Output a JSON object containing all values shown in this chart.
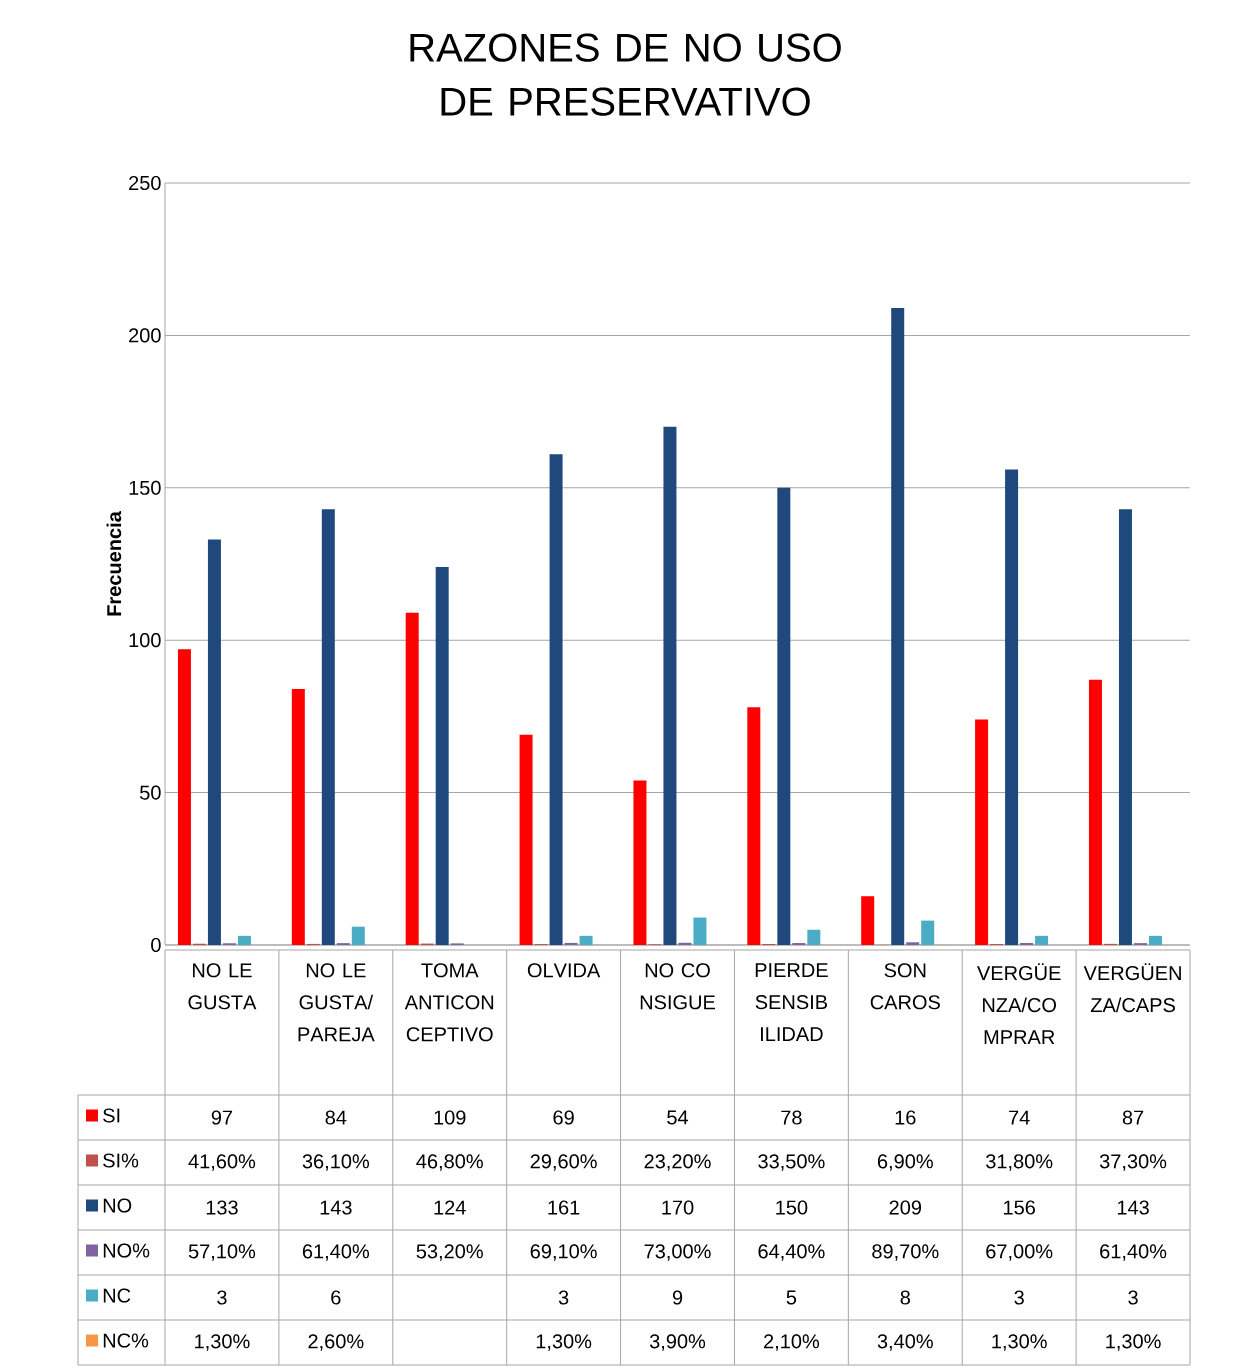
{
  "chart_data": {
    "type": "bar",
    "title": "RAZONES DE NO USO DE PRESERVATIVO",
    "ylabel": "Frecuencia",
    "categories": [
      "NO LE GUSTA",
      "NO LE GUSTA/PAREJA",
      "TOMA ANTICONCEPTIVO",
      "OLVIDA",
      "NO CONSIGUE",
      "PIERDE SENSIBILIDAD",
      "SON CAROS",
      "VERGÜENZA/COMPRAR",
      "VERGÜENZA/CAPS"
    ],
    "series": [
      {
        "name": "SI",
        "color": "#ff0000",
        "values": [
          97,
          84,
          109,
          69,
          54,
          78,
          16,
          74,
          87
        ],
        "value_labels": [
          "97",
          "84",
          "109",
          "69",
          "54",
          "78",
          "16",
          "74",
          "87"
        ]
      },
      {
        "name": "SI%",
        "color": "#c0504d",
        "values": [
          0.416,
          0.361,
          0.468,
          0.296,
          0.232,
          0.335,
          0.069,
          0.318,
          0.373
        ],
        "value_labels": [
          "41,60%",
          "36,10%",
          "46,80%",
          "29,60%",
          "23,20%",
          "33,50%",
          "6,90%",
          "31,80%",
          "37,30%"
        ]
      },
      {
        "name": "NO",
        "color": "#1f497d",
        "values": [
          133,
          143,
          124,
          161,
          170,
          150,
          209,
          156,
          143
        ],
        "value_labels": [
          "133",
          "143",
          "124",
          "161",
          "170",
          "150",
          "209",
          "156",
          "143"
        ]
      },
      {
        "name": "NO%",
        "color": "#8064a2",
        "values": [
          0.571,
          0.614,
          0.532,
          0.691,
          0.73,
          0.644,
          0.897,
          0.67,
          0.614
        ],
        "value_labels": [
          "57,10%",
          "61,40%",
          "53,20%",
          "69,10%",
          "73,00%",
          "64,40%",
          "89,70%",
          "67,00%",
          "61,40%"
        ]
      },
      {
        "name": "NC",
        "color": "#4bacc6",
        "values": [
          3,
          6,
          null,
          3,
          9,
          5,
          8,
          3,
          3
        ],
        "value_labels": [
          "3",
          "6",
          null,
          "3",
          "9",
          "5",
          "8",
          "3",
          "3"
        ]
      },
      {
        "name": "NC%",
        "color": "#f79646",
        "values": [
          0.013,
          0.026,
          null,
          0.013,
          0.039,
          0.021,
          0.034,
          0.013,
          0.013
        ],
        "value_labels": [
          "1,30%",
          "2,60%",
          null,
          "1,30%",
          "3,90%",
          "2,10%",
          "3,40%",
          "1,30%",
          "1,30%"
        ]
      }
    ],
    "ylim": [
      0,
      250
    ],
    "yticks": [
      0,
      50,
      100,
      150,
      200,
      250
    ],
    "grid": "y",
    "legend": "bottom"
  }
}
